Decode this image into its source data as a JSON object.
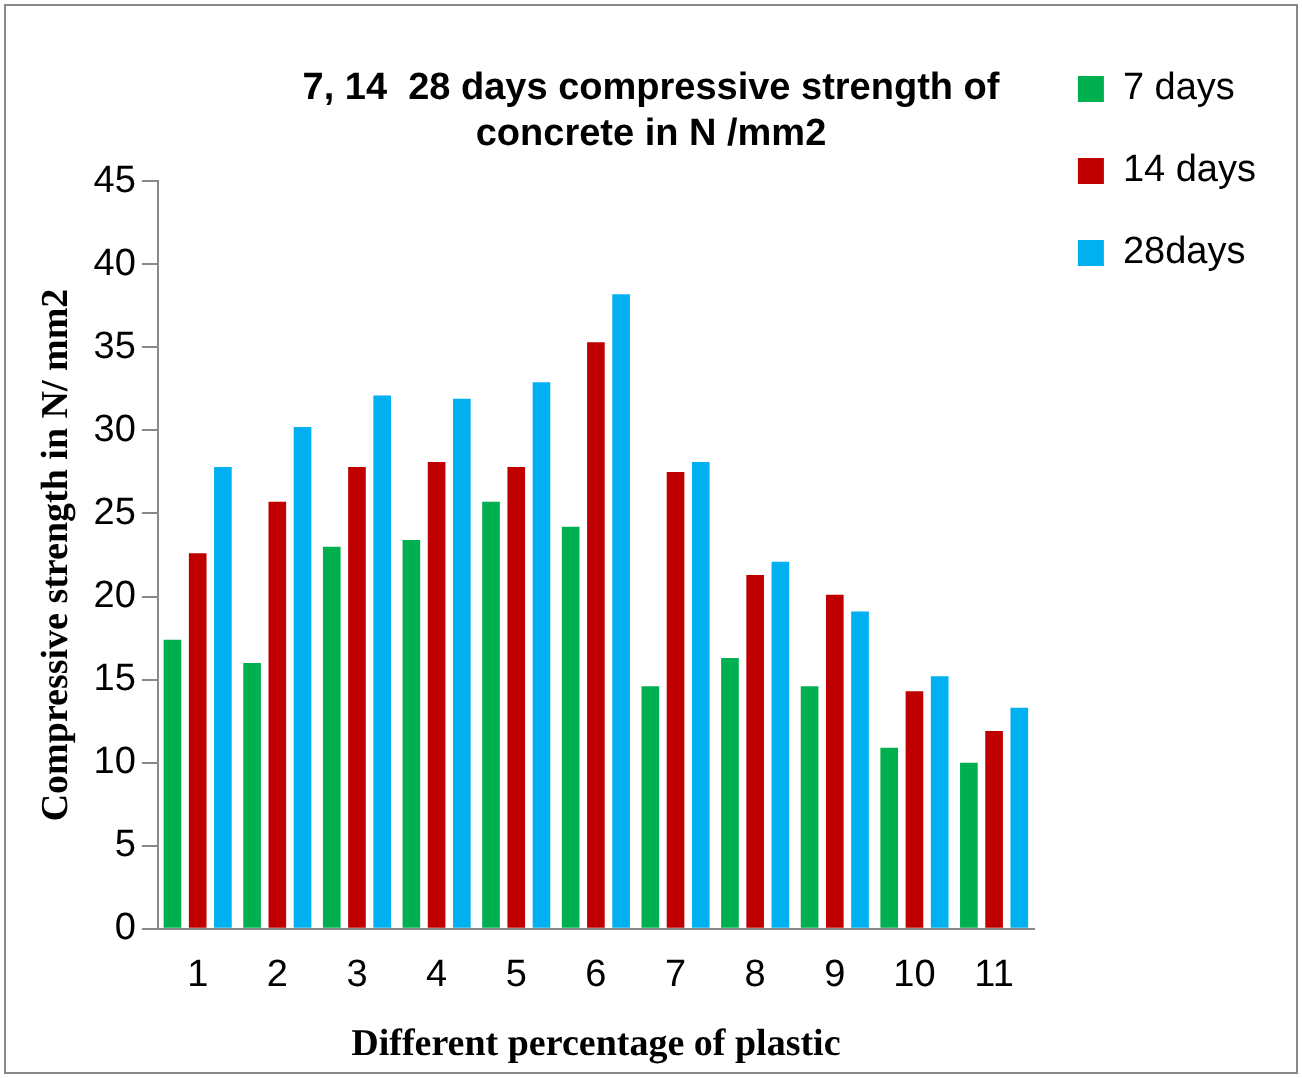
{
  "chart_data": {
    "type": "bar",
    "title": "7, 14  28 days compressive strength of concrete in N /mm2",
    "xlabel": "Different percentage of plastic",
    "ylabel": "Compressive strength in N/ mm2",
    "categories": [
      "1",
      "2",
      "3",
      "4",
      "5",
      "6",
      "7",
      "8",
      "9",
      "10",
      "11"
    ],
    "series": [
      {
        "name": "7 days",
        "color": "#00b050",
        "values": [
          17.4,
          16.0,
          23.0,
          23.4,
          25.7,
          24.2,
          14.6,
          16.3,
          14.6,
          10.9,
          10.0
        ]
      },
      {
        "name": "14 days",
        "color": "#c00000",
        "values": [
          22.6,
          25.7,
          27.8,
          28.1,
          27.8,
          35.3,
          27.5,
          21.3,
          20.1,
          14.3,
          11.9
        ]
      },
      {
        "name": "28days",
        "color": "#00b0f0",
        "values": [
          27.8,
          30.2,
          32.1,
          31.9,
          32.9,
          38.2,
          28.1,
          22.1,
          19.1,
          15.2,
          13.3
        ]
      }
    ],
    "ylim": [
      0,
      45
    ],
    "yticks": [
      0,
      5,
      10,
      15,
      20,
      25,
      30,
      35,
      40,
      45
    ],
    "grid": false,
    "legend": "right"
  }
}
